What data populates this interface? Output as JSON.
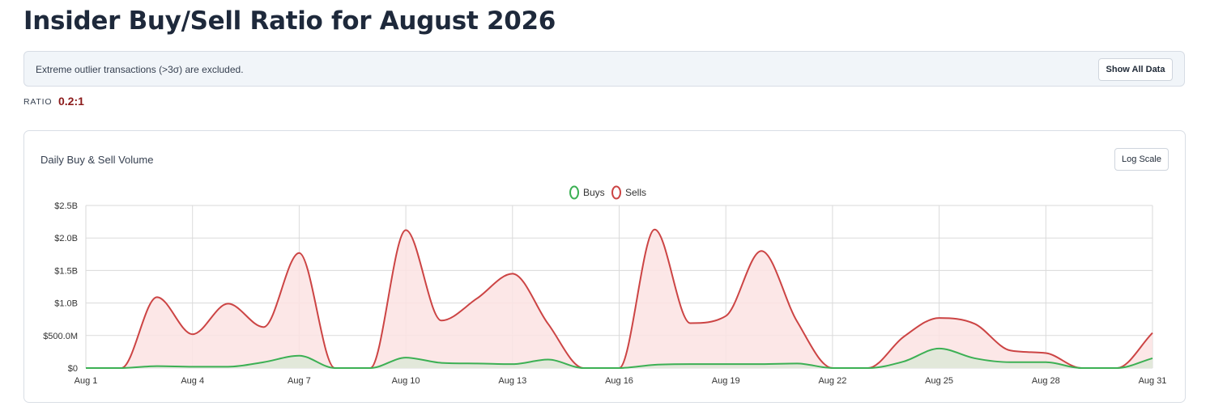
{
  "page": {
    "title": "Insider Buy/Sell Ratio for August 2026"
  },
  "notice": {
    "text": "Extreme outlier transactions (>3σ) are excluded.",
    "button_label": "Show All Data"
  },
  "ratio": {
    "label": "RATIO",
    "value": "0.2:1"
  },
  "card": {
    "title": "Daily Buy & Sell Volume",
    "log_button_label": "Log Scale"
  },
  "colors": {
    "buys": "#3cb054",
    "sells": "#cc4444",
    "buys_fill": "#dfe8d8",
    "sells_fill": "#fbe3e3",
    "grid": "#dadada"
  },
  "chart_data": {
    "type": "area",
    "x": [
      "Aug 1",
      "Aug 2",
      "Aug 3",
      "Aug 4",
      "Aug 5",
      "Aug 6",
      "Aug 7",
      "Aug 8",
      "Aug 9",
      "Aug 10",
      "Aug 11",
      "Aug 12",
      "Aug 13",
      "Aug 14",
      "Aug 15",
      "Aug 16",
      "Aug 17",
      "Aug 18",
      "Aug 19",
      "Aug 20",
      "Aug 21",
      "Aug 22",
      "Aug 23",
      "Aug 24",
      "Aug 25",
      "Aug 26",
      "Aug 27",
      "Aug 28",
      "Aug 29",
      "Aug 30",
      "Aug 31"
    ],
    "x_tick_labels": [
      "Aug 1",
      "Aug 4",
      "Aug 7",
      "Aug 10",
      "Aug 13",
      "Aug 16",
      "Aug 19",
      "Aug 22",
      "Aug 25",
      "Aug 28",
      "Aug 31"
    ],
    "y_tick_labels": [
      "$0",
      "$500.0M",
      "$1.0B",
      "$1.5B",
      "$2.0B",
      "$2.5B"
    ],
    "ylim": [
      0,
      2500000000
    ],
    "grid": true,
    "legend": "top-center",
    "series": [
      {
        "name": "Buys",
        "values": [
          0,
          0,
          30000000,
          20000000,
          20000000,
          90000000,
          190000000,
          0,
          0,
          160000000,
          80000000,
          70000000,
          60000000,
          130000000,
          0,
          0,
          50000000,
          60000000,
          60000000,
          60000000,
          70000000,
          0,
          0,
          100000000,
          300000000,
          150000000,
          90000000,
          90000000,
          0,
          0,
          150000000
        ]
      },
      {
        "name": "Sells",
        "values": [
          0,
          0,
          1090000000,
          520000000,
          990000000,
          630000000,
          1770000000,
          0,
          0,
          2120000000,
          730000000,
          1070000000,
          1450000000,
          680000000,
          0,
          0,
          2130000000,
          690000000,
          800000000,
          1800000000,
          720000000,
          0,
          0,
          480000000,
          770000000,
          680000000,
          270000000,
          230000000,
          0,
          0,
          540000000
        ]
      }
    ]
  }
}
